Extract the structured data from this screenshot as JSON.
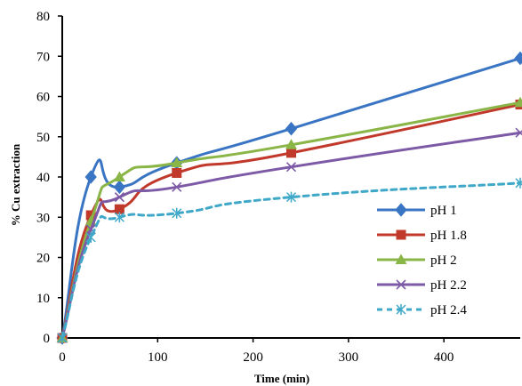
{
  "chart_data": {
    "type": "line",
    "xlabel": "Time (min)",
    "ylabel": "% Cu extraction",
    "xlim": [
      0,
      480
    ],
    "ylim": [
      0,
      80
    ],
    "xticks": [
      0,
      100,
      200,
      300,
      400
    ],
    "yticks": [
      0,
      10,
      20,
      30,
      40,
      50,
      60,
      70,
      80
    ],
    "grid": false,
    "legend_position": "right",
    "x": [
      0,
      30,
      60,
      120,
      240,
      480
    ],
    "series": [
      {
        "name": "pH 1",
        "values": [
          0,
          40,
          37.5,
          43.5,
          52,
          69.5
        ],
        "color": "#3a75c4",
        "marker": "diamond",
        "line_style": "solid"
      },
      {
        "name": "pH 1.8",
        "values": [
          0,
          30.5,
          32,
          41,
          46,
          58
        ],
        "color": "#c0392b",
        "marker": "square",
        "line_style": "solid"
      },
      {
        "name": "pH 2",
        "values": [
          0,
          29,
          40,
          43.5,
          48,
          58.5
        ],
        "color": "#8ab547",
        "marker": "triangle",
        "line_style": "solid"
      },
      {
        "name": "pH 2.2",
        "values": [
          0,
          27,
          35,
          37.5,
          42.5,
          51
        ],
        "color": "#7d5aa6",
        "marker": "x",
        "line_style": "solid"
      },
      {
        "name": "pH 2.4",
        "values": [
          0,
          25,
          30,
          31,
          35,
          38.5
        ],
        "color": "#3fa8c8",
        "marker": "asterisk",
        "line_style": "dashed"
      }
    ]
  }
}
